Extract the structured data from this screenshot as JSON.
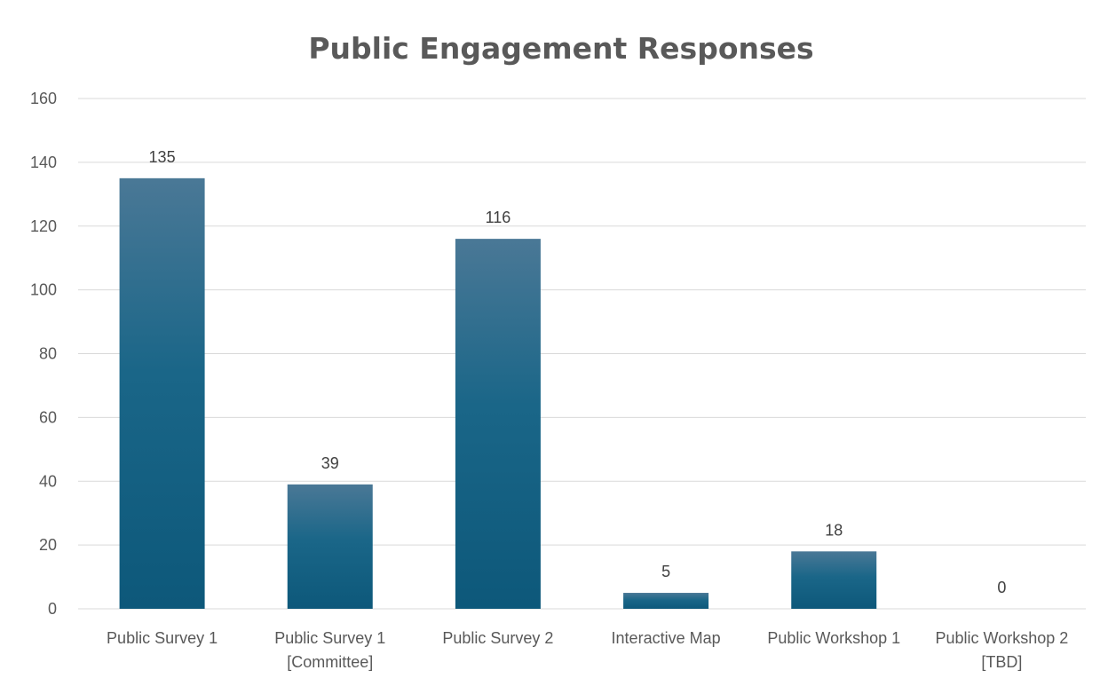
{
  "chart_data": {
    "type": "bar",
    "title": "Public Engagement Responses",
    "xlabel": "",
    "ylabel": "",
    "categories": [
      [
        "Public Survey 1"
      ],
      [
        "Public Survey 1",
        "[Committee]"
      ],
      [
        "Public Survey 2"
      ],
      [
        "Interactive Map"
      ],
      [
        "Public Workshop 1"
      ],
      [
        "Public Workshop 2",
        "[TBD]"
      ]
    ],
    "values": [
      135,
      39,
      116,
      5,
      18,
      0
    ],
    "ylim": [
      0,
      160
    ],
    "yticks": [
      0,
      20,
      40,
      60,
      80,
      100,
      120,
      140,
      160
    ],
    "grid": true,
    "legend": "none",
    "data_labels": true,
    "colors": {
      "bar_top": "#4a7896",
      "bar_bottom": "#0d587a",
      "grid": "#d9d9d9",
      "text": "#595959"
    }
  }
}
